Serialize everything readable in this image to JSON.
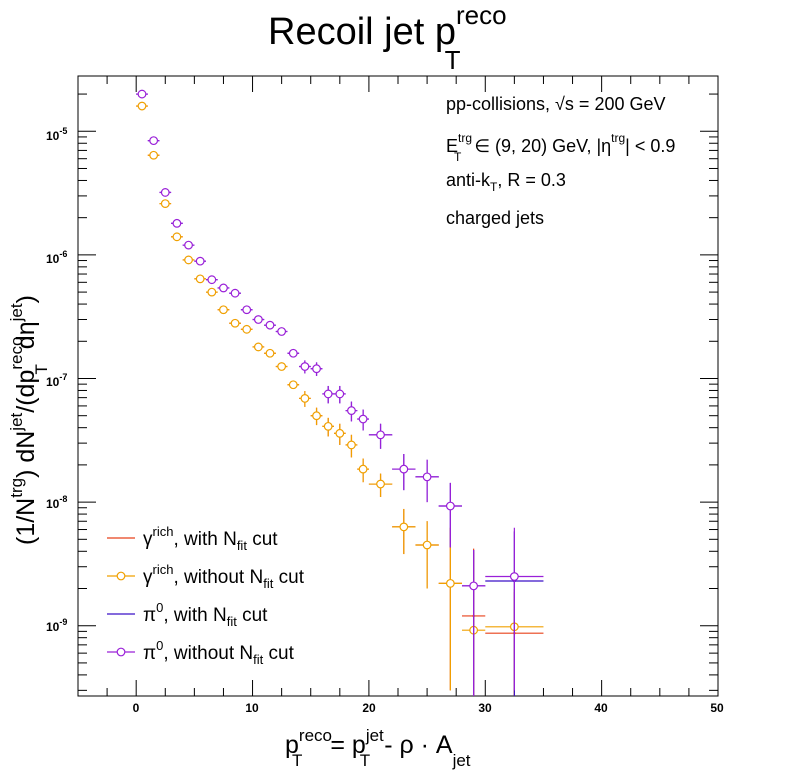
{
  "chart_data": {
    "type": "scatter",
    "title": {
      "main": "Recoil jet p",
      "sup": "reco",
      "sub": "T"
    },
    "x_axis": {
      "range": [
        -5,
        50
      ],
      "ticks": [
        "0",
        "10",
        "20",
        "30",
        "40",
        "50"
      ],
      "log": false
    },
    "y_axis": {
      "range": [
        2.7e-10,
        2.8e-05
      ],
      "log": true,
      "ticks": [
        "10",
        "10",
        "10",
        "10",
        "10"
      ],
      "tick_exponents": [
        "-5",
        "-6",
        "-7",
        "-8",
        "-9"
      ]
    },
    "xlabel": {
      "p": "p",
      "reco": "reco",
      "T": "T",
      "eq": "= p",
      "jet": "jet",
      "T2": "T",
      "rest": "- ρ · A",
      "jet2": "jet"
    },
    "ylabel": {
      "a": "(1/N",
      "trg": "trg",
      "b": ") dN",
      "jet": "jet",
      "c": "/(dp",
      "reco": "reco",
      "T": "T",
      "d": " dη",
      "jet2": "jet",
      "e": ")"
    },
    "annotations": {
      "line1": "pp-collisions, √s = 200 GeV",
      "line2_E": "E",
      "line2_trg": "trg",
      "line2_T": "T",
      "line2_rest": " ∈ (9, 20) GeV, |η",
      "line2_trg2": "trg",
      "line2_end": "| < 0.9",
      "line3_a": "anti-k",
      "line3_T": "T",
      "line3_b": ", R = 0.3",
      "line4": "charged jets"
    },
    "legend_position": "bottom-left",
    "series": [
      {
        "name": "γrich, with Nfit cut",
        "legend": {
          "sym": "γ",
          "sup": "rich",
          "mid": ", with N",
          "sub": "fit",
          "end": " cut"
        },
        "color": "#e8421a",
        "marker": "cross",
        "points": [
          [
            0.5,
            1.6e-05,
            0.5,
            0,
            0
          ],
          [
            1.5,
            6.4e-06,
            0.5,
            0,
            0
          ],
          [
            2.5,
            2.6e-06,
            0.5,
            0,
            0
          ],
          [
            3.5,
            1.4e-06,
            0.5,
            0,
            0
          ],
          [
            4.5,
            9.1e-07,
            0.5,
            0,
            0
          ],
          [
            5.5,
            6.4e-07,
            0.5,
            0,
            0
          ],
          [
            6.5,
            5e-07,
            0.5,
            0,
            0
          ],
          [
            7.5,
            3.6e-07,
            0.5,
            0,
            0
          ],
          [
            8.5,
            2.8e-07,
            0.5,
            0,
            0
          ],
          [
            9.5,
            2.5e-07,
            0.5,
            0,
            0
          ],
          [
            10.5,
            1.8e-07,
            0.5,
            0,
            0
          ],
          [
            11.5,
            1.6e-07,
            0.5,
            0,
            0
          ],
          [
            12.5,
            1.25e-07,
            0.5,
            0,
            0
          ],
          [
            13.5,
            8.9e-08,
            0.5,
            0,
            0
          ],
          [
            14.5,
            6.9e-08,
            0.5,
            1e-08,
            1e-08
          ],
          [
            15.5,
            5e-08,
            0.5,
            8e-09,
            8e-09
          ],
          [
            16.5,
            4.1e-08,
            0.5,
            7e-09,
            7e-09
          ],
          [
            17.5,
            3.6e-08,
            0.5,
            7e-09,
            7e-09
          ],
          [
            18.5,
            2.9e-08,
            0.5,
            6e-09,
            6e-09
          ],
          [
            19.5,
            1.85e-08,
            0.5,
            4e-09,
            4e-09
          ],
          [
            21,
            1.4e-08,
            1,
            3e-09,
            3e-09
          ],
          [
            23,
            6.3e-09,
            1,
            2.5e-09,
            2.5e-09
          ],
          [
            25,
            4.5e-09,
            1,
            2.5e-09,
            2.5e-09
          ],
          [
            27,
            2.2e-09,
            1,
            1.9e-09,
            4e-09
          ],
          [
            29,
            1.2e-09,
            1,
            9.3e-10,
            3e-09
          ],
          [
            32.5,
            8.7e-10,
            2.5,
            6e-10,
            1e-09
          ]
        ]
      },
      {
        "name": "γrich, without Nfit cut",
        "legend": {
          "sym": "γ",
          "sup": "rich",
          "mid": ", without N",
          "sub": "fit",
          "end": " cut"
        },
        "color": "#f0a000",
        "marker": "circle",
        "points": [
          [
            0.5,
            1.6e-05,
            0.5,
            0,
            0
          ],
          [
            1.5,
            6.4e-06,
            0.5,
            0,
            0
          ],
          [
            2.5,
            2.6e-06,
            0.5,
            0,
            0
          ],
          [
            3.5,
            1.4e-06,
            0.5,
            0,
            0
          ],
          [
            4.5,
            9.1e-07,
            0.5,
            0,
            0
          ],
          [
            5.5,
            6.4e-07,
            0.5,
            0,
            0
          ],
          [
            6.5,
            5e-07,
            0.5,
            0,
            0
          ],
          [
            7.5,
            3.6e-07,
            0.5,
            0,
            0
          ],
          [
            8.5,
            2.8e-07,
            0.5,
            0,
            0
          ],
          [
            9.5,
            2.5e-07,
            0.5,
            0,
            0
          ],
          [
            10.5,
            1.8e-07,
            0.5,
            0,
            0
          ],
          [
            11.5,
            1.6e-07,
            0.5,
            0,
            0
          ],
          [
            12.5,
            1.25e-07,
            0.5,
            0,
            0
          ],
          [
            13.5,
            8.9e-08,
            0.5,
            0,
            0
          ],
          [
            14.5,
            6.9e-08,
            0.5,
            1e-08,
            1e-08
          ],
          [
            15.5,
            5e-08,
            0.5,
            8e-09,
            8e-09
          ],
          [
            16.5,
            4.1e-08,
            0.5,
            7e-09,
            7e-09
          ],
          [
            17.5,
            3.6e-08,
            0.5,
            7e-09,
            7e-09
          ],
          [
            18.5,
            2.9e-08,
            0.5,
            6e-09,
            6e-09
          ],
          [
            19.5,
            1.85e-08,
            0.5,
            4e-09,
            4e-09
          ],
          [
            21,
            1.4e-08,
            1,
            3e-09,
            3e-09
          ],
          [
            23,
            6.3e-09,
            1,
            2.5e-09,
            2.5e-09
          ],
          [
            25,
            4.5e-09,
            1,
            2.5e-09,
            2.5e-09
          ],
          [
            27,
            2.2e-09,
            1,
            1.9e-09,
            4e-09
          ],
          [
            29,
            9.2e-10,
            1,
            6.5e-10,
            3e-09
          ],
          [
            32.5,
            9.8e-10,
            2.5,
            7e-10,
            1e-09
          ]
        ]
      },
      {
        "name": "π0, with Nfit cut",
        "legend": {
          "sym": "π",
          "sup": "0",
          "mid": ", with N",
          "sub": "fit",
          "end": " cut"
        },
        "color": "#3a10c8",
        "marker": "cross",
        "points": [
          [
            0.5,
            2e-05,
            0.5,
            0,
            0
          ],
          [
            1.5,
            8.4e-06,
            0.5,
            0,
            0
          ],
          [
            2.5,
            3.2e-06,
            0.5,
            0,
            0
          ],
          [
            3.5,
            1.8e-06,
            0.5,
            0,
            0
          ],
          [
            4.5,
            1.2e-06,
            0.5,
            0,
            0
          ],
          [
            5.5,
            8.9e-07,
            0.5,
            0,
            0
          ],
          [
            6.5,
            6.3e-07,
            0.5,
            0,
            0
          ],
          [
            7.5,
            5.4e-07,
            0.5,
            0,
            0
          ],
          [
            8.5,
            4.9e-07,
            0.5,
            0,
            0
          ],
          [
            9.5,
            3.6e-07,
            0.5,
            0,
            0
          ],
          [
            10.5,
            3e-07,
            0.5,
            0,
            0
          ],
          [
            11.5,
            2.7e-07,
            0.5,
            0,
            0
          ],
          [
            12.5,
            2.4e-07,
            0.5,
            0,
            0
          ],
          [
            13.5,
            1.6e-07,
            0.5,
            0,
            0
          ],
          [
            14.5,
            1.25e-07,
            0.5,
            1.5e-08,
            1.5e-08
          ],
          [
            15.5,
            1.2e-07,
            0.5,
            1.5e-08,
            1.5e-08
          ],
          [
            16.5,
            7.5e-08,
            0.5,
            1.2e-08,
            1.2e-08
          ],
          [
            17.5,
            7.5e-08,
            0.5,
            1.2e-08,
            1.2e-08
          ],
          [
            18.5,
            5.5e-08,
            0.5,
            1e-08,
            1e-08
          ],
          [
            19.5,
            4.7e-08,
            0.5,
            9e-09,
            9e-09
          ],
          [
            21,
            3.5e-08,
            1,
            8e-09,
            8e-09
          ],
          [
            23,
            1.85e-08,
            1,
            6e-09,
            6e-09
          ],
          [
            25,
            1.6e-08,
            1,
            6e-09,
            6e-09
          ],
          [
            27,
            9.3e-09,
            1,
            5e-09,
            5e-09
          ],
          [
            29,
            2.1e-09,
            1,
            1.9e-09,
            2e-09
          ],
          [
            32.5,
            2.3e-09,
            2.5,
            2.1e-09,
            3.5e-09
          ]
        ]
      },
      {
        "name": "π0, without Nfit cut",
        "legend": {
          "sym": "π",
          "sup": "0",
          "mid": ", without N",
          "sub": "fit",
          "end": " cut"
        },
        "color": "#9a20d8",
        "marker": "circle",
        "points": [
          [
            0.5,
            2e-05,
            0.5,
            0,
            0
          ],
          [
            1.5,
            8.4e-06,
            0.5,
            0,
            0
          ],
          [
            2.5,
            3.2e-06,
            0.5,
            0,
            0
          ],
          [
            3.5,
            1.8e-06,
            0.5,
            0,
            0
          ],
          [
            4.5,
            1.2e-06,
            0.5,
            0,
            0
          ],
          [
            5.5,
            8.9e-07,
            0.5,
            0,
            0
          ],
          [
            6.5,
            6.3e-07,
            0.5,
            0,
            0
          ],
          [
            7.5,
            5.4e-07,
            0.5,
            0,
            0
          ],
          [
            8.5,
            4.9e-07,
            0.5,
            0,
            0
          ],
          [
            9.5,
            3.6e-07,
            0.5,
            0,
            0
          ],
          [
            10.5,
            3e-07,
            0.5,
            0,
            0
          ],
          [
            11.5,
            2.7e-07,
            0.5,
            0,
            0
          ],
          [
            12.5,
            2.4e-07,
            0.5,
            0,
            0
          ],
          [
            13.5,
            1.6e-07,
            0.5,
            0,
            0
          ],
          [
            14.5,
            1.25e-07,
            0.5,
            1.5e-08,
            1.5e-08
          ],
          [
            15.5,
            1.2e-07,
            0.5,
            1.5e-08,
            1.5e-08
          ],
          [
            16.5,
            7.5e-08,
            0.5,
            1.2e-08,
            1.2e-08
          ],
          [
            17.5,
            7.5e-08,
            0.5,
            1.2e-08,
            1.2e-08
          ],
          [
            18.5,
            5.5e-08,
            0.5,
            1e-08,
            1e-08
          ],
          [
            19.5,
            4.7e-08,
            0.5,
            9e-09,
            9e-09
          ],
          [
            21,
            3.5e-08,
            1,
            8e-09,
            8e-09
          ],
          [
            23,
            1.85e-08,
            1,
            6e-09,
            6e-09
          ],
          [
            25,
            1.6e-08,
            1,
            6e-09,
            6e-09
          ],
          [
            27,
            9.3e-09,
            1,
            5e-09,
            5e-09
          ],
          [
            29,
            2.1e-09,
            1,
            1.9e-09,
            2e-09
          ],
          [
            32.5,
            2.5e-09,
            2.5,
            2.2e-09,
            3.7e-09
          ]
        ]
      }
    ]
  }
}
